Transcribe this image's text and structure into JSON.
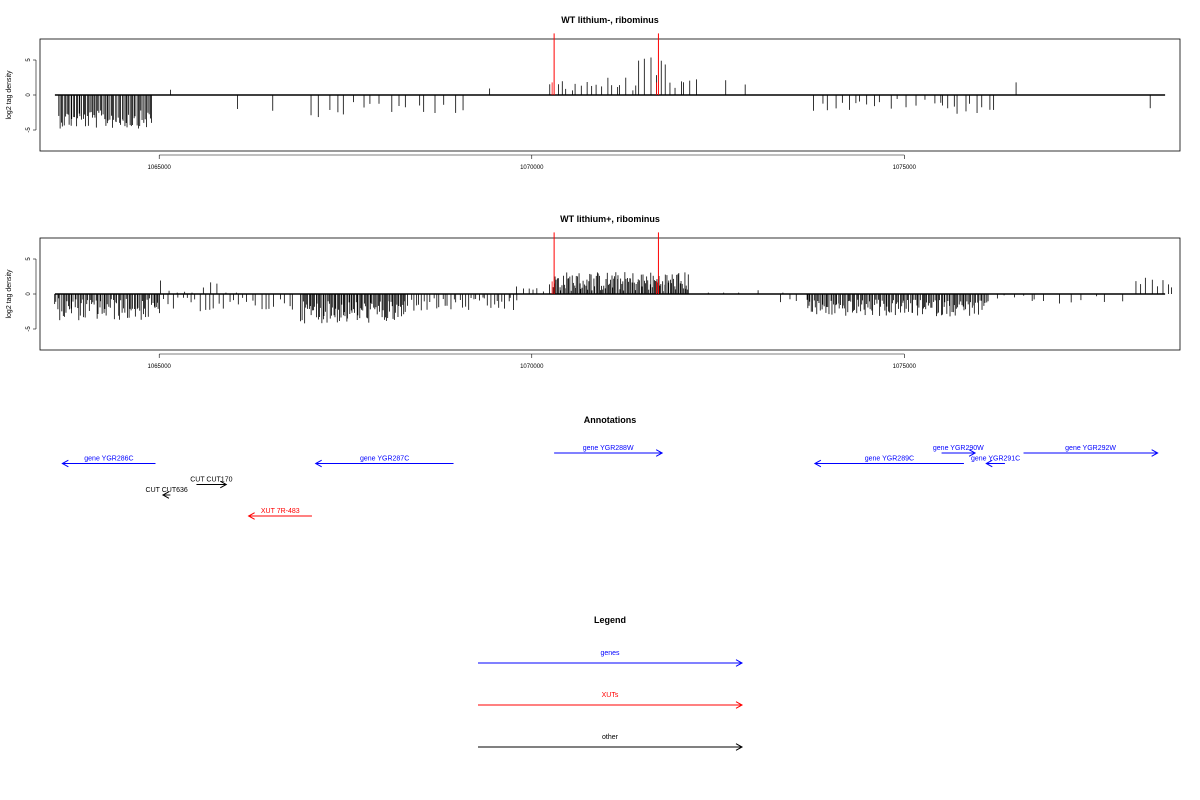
{
  "chart_data": [
    {
      "type": "bar",
      "title": "WT lithium-, ribominus",
      "ylabel": "log2 tag density",
      "xlim": [
        1063400,
        1078700
      ],
      "ylim": [
        -8,
        8
      ],
      "xticks": [
        1065000,
        1070000,
        1075000
      ],
      "xtick_labels": [
        "1065000",
        "1070000",
        "1075000"
      ],
      "yticks": [
        -5,
        0,
        5
      ],
      "ytick_labels": [
        "-5",
        "0",
        "5"
      ],
      "baseline": {
        "x": [
          1063600,
          1078500
        ],
        "y": 0
      },
      "red_markers": [
        1070300,
        1071700
      ],
      "red_marker_height": 8.8,
      "segments": [
        {
          "x": [
            1063650,
            1064900
          ],
          "y": -3.5,
          "spread": 1.3,
          "count": 70
        },
        {
          "x": [
            1065150,
            1065150
          ],
          "y": 0.8,
          "spread": 0.2,
          "count": 1
        },
        {
          "x": [
            1066100,
            1066600
          ],
          "y": -2.2,
          "spread": 0.6,
          "count": 2
        },
        {
          "x": [
            1067000,
            1067400
          ],
          "y": -2.5,
          "spread": 1.0,
          "count": 4
        },
        {
          "x": [
            1067500,
            1068100
          ],
          "y": -2.0,
          "spread": 1.0,
          "count": 6
        },
        {
          "x": [
            1068200,
            1069100
          ],
          "y": -1.8,
          "spread": 0.8,
          "count": 8
        },
        {
          "x": [
            1069400,
            1069500
          ],
          "y": 0.8,
          "spread": 0.2,
          "count": 1
        },
        {
          "x": [
            1070250,
            1070350
          ],
          "y": 1.5,
          "spread": 0.6,
          "count": 2
        },
        {
          "x": [
            1070400,
            1071400
          ],
          "y": 1.6,
          "spread": 1.0,
          "count": 16
        },
        {
          "x": [
            1071450,
            1071800
          ],
          "y": 3.0,
          "spread": 2.4,
          "count": 6
        },
        {
          "x": [
            1071850,
            1072200
          ],
          "y": 1.6,
          "spread": 0.7,
          "count": 6
        },
        {
          "x": [
            1072600,
            1072900
          ],
          "y": 1.8,
          "spread": 0.4,
          "count": 2
        },
        {
          "x": [
            1073800,
            1074600
          ],
          "y": -1.6,
          "spread": 0.8,
          "count": 10
        },
        {
          "x": [
            1074700,
            1075500
          ],
          "y": -1.3,
          "spread": 0.8,
          "count": 8
        },
        {
          "x": [
            1075500,
            1076200
          ],
          "y": -1.8,
          "spread": 0.9,
          "count": 10
        },
        {
          "x": [
            1076500,
            1076500
          ],
          "y": 1.8,
          "spread": 0.2,
          "count": 1
        },
        {
          "x": [
            1078300,
            1078300
          ],
          "y": -1.8,
          "spread": 0.2,
          "count": 1
        }
      ]
    },
    {
      "type": "bar",
      "title": "WT lithium+, ribominus",
      "ylabel": "log2 tag density",
      "xlim": [
        1063400,
        1078700
      ],
      "ylim": [
        -8,
        8
      ],
      "xticks": [
        1065000,
        1070000,
        1075000
      ],
      "xtick_labels": [
        "1065000",
        "1070000",
        "1075000"
      ],
      "yticks": [
        -5,
        0,
        5
      ],
      "ytick_labels": [
        "-5",
        "0",
        "5"
      ],
      "baseline": {
        "x": [
          1063600,
          1078500
        ],
        "y": 0
      },
      "red_markers": [
        1070300,
        1071700
      ],
      "red_marker_height": 8.8,
      "segments": [
        {
          "x": [
            1063600,
            1065000
          ],
          "y": -2.2,
          "spread": 1.6,
          "count": 80
        },
        {
          "x": [
            1065000,
            1066000
          ],
          "y": 0.9,
          "spread": 1.2,
          "count": 10
        },
        {
          "x": [
            1065000,
            1066800
          ],
          "y": -1.5,
          "spread": 1.0,
          "count": 30
        },
        {
          "x": [
            1066900,
            1068300
          ],
          "y": -2.6,
          "spread": 1.6,
          "count": 90
        },
        {
          "x": [
            1068300,
            1069800
          ],
          "y": -1.5,
          "spread": 1.0,
          "count": 40
        },
        {
          "x": [
            1069800,
            1070300
          ],
          "y": 0.9,
          "spread": 0.6,
          "count": 8
        },
        {
          "x": [
            1070300,
            1072100
          ],
          "y": 1.8,
          "spread": 1.4,
          "count": 120
        },
        {
          "x": [
            1072100,
            1073300
          ],
          "y": 0.4,
          "spread": 0.6,
          "count": 6
        },
        {
          "x": [
            1073300,
            1073700
          ],
          "y": -0.8,
          "spread": 0.4,
          "count": 4
        },
        {
          "x": [
            1073700,
            1076100
          ],
          "y": -2.0,
          "spread": 1.2,
          "count": 140
        },
        {
          "x": [
            1076100,
            1076700
          ],
          "y": -0.8,
          "spread": 0.6,
          "count": 6
        },
        {
          "x": [
            1076700,
            1077900
          ],
          "y": -0.9,
          "spread": 0.6,
          "count": 8
        },
        {
          "x": [
            1078100,
            1078600
          ],
          "y": 1.5,
          "spread": 1.0,
          "count": 8
        }
      ]
    }
  ],
  "annotations_title": "Annotations",
  "annotations": [
    {
      "label": "gene YGR286C",
      "color": "#0000ff",
      "dir": "left",
      "start": 1063700,
      "end": 1064950,
      "row": 1
    },
    {
      "label": "gene YGR287C",
      "color": "#0000ff",
      "dir": "left",
      "start": 1067100,
      "end": 1068950,
      "row": 1
    },
    {
      "label": "gene YGR288W",
      "color": "#0000ff",
      "dir": "right",
      "start": 1070300,
      "end": 1071750,
      "row": 0
    },
    {
      "label": "gene YGR289C",
      "color": "#0000ff",
      "dir": "left",
      "start": 1073800,
      "end": 1075800,
      "row": 1
    },
    {
      "label": "gene YGR290W",
      "color": "#0000ff",
      "dir": "right",
      "start": 1075500,
      "end": 1075950,
      "row": 0
    },
    {
      "label": "gene YGR291C",
      "color": "#0000ff",
      "dir": "left",
      "start": 1076100,
      "end": 1076350,
      "row": 1
    },
    {
      "label": "gene YGR292W",
      "color": "#0000ff",
      "dir": "right",
      "start": 1076600,
      "end": 1078400,
      "row": 0
    },
    {
      "label": "CUT CUT170",
      "color": "#000000",
      "dir": "right",
      "start": 1065500,
      "end": 1065900,
      "row": 3
    },
    {
      "label": "CUT CUT636",
      "color": "#000000",
      "dir": "left",
      "start": 1065050,
      "end": 1065150,
      "row": 4
    },
    {
      "label": "XUT 7R-483",
      "color": "#ff0000",
      "dir": "left",
      "start": 1066200,
      "end": 1067050,
      "row": 6
    }
  ],
  "legend": {
    "title": "Legend",
    "items": [
      {
        "label": "genes",
        "color": "#0000ff"
      },
      {
        "label": "XUTs",
        "color": "#ff0000"
      },
      {
        "label": "other",
        "color": "#000000"
      }
    ]
  }
}
